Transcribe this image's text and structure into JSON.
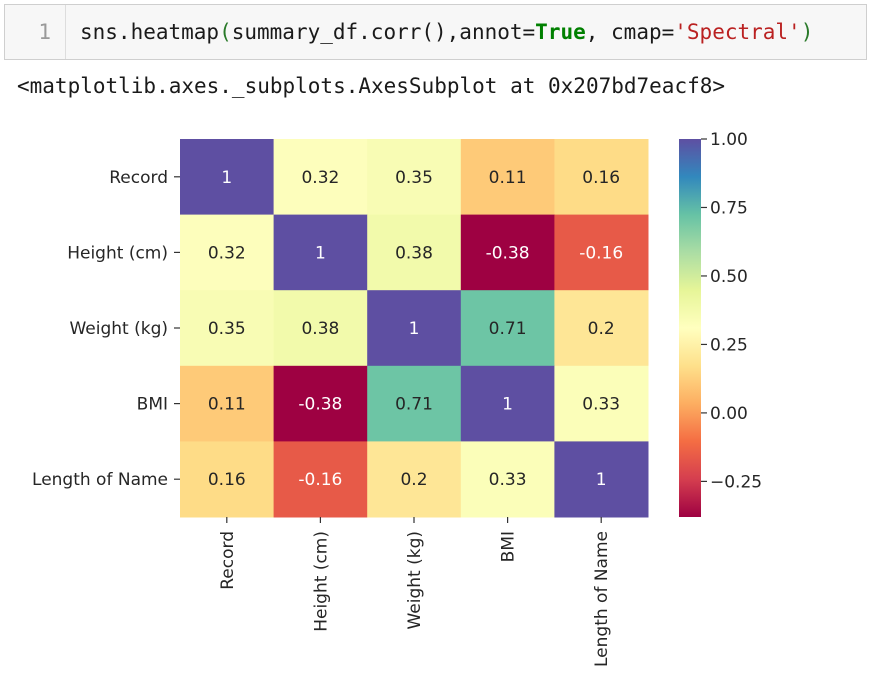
{
  "notebook": {
    "cell_input": {
      "line_number": "1",
      "tokens": [
        {
          "text": "sns.heatmap",
          "kind": "plain"
        },
        {
          "text": "(",
          "kind": "paren"
        },
        {
          "text": "summary_df.corr(),annot=",
          "kind": "plain"
        },
        {
          "text": "True",
          "kind": "kw"
        },
        {
          "text": ", cmap=",
          "kind": "plain"
        },
        {
          "text": "'Spectral'",
          "kind": "str"
        },
        {
          "text": ")",
          "kind": "paren"
        }
      ]
    },
    "cell_output": {
      "repr_text": "<matplotlib.axes._subplots.AxesSubplot at 0x207bd7eacf8>"
    }
  },
  "chart_data": {
    "type": "heatmap",
    "title": "",
    "xlabel": "",
    "ylabel": "",
    "cmap": "Spectral",
    "rows": [
      "Record",
      "Height (cm)",
      "Weight (kg)",
      "BMI",
      "Length of Name"
    ],
    "columns": [
      "Record",
      "Height (cm)",
      "Weight (kg)",
      "BMI",
      "Length of Name"
    ],
    "values": [
      [
        1,
        0.32,
        0.35,
        0.11,
        0.16
      ],
      [
        0.32,
        1,
        0.38,
        -0.38,
        -0.16
      ],
      [
        0.35,
        0.38,
        1,
        0.71,
        0.2
      ],
      [
        0.11,
        -0.38,
        0.71,
        1,
        0.33
      ],
      [
        0.16,
        -0.16,
        0.2,
        0.33,
        1
      ]
    ],
    "annotations": [
      [
        "1",
        "0.32",
        "0.35",
        "0.11",
        "0.16"
      ],
      [
        "0.32",
        "1",
        "0.38",
        "-0.38",
        "-0.16"
      ],
      [
        "0.35",
        "0.38",
        "1",
        "0.71",
        "0.2"
      ],
      [
        "0.11",
        "-0.38",
        "0.71",
        "1",
        "0.33"
      ],
      [
        "0.16",
        "-0.16",
        "0.2",
        "0.33",
        "1"
      ]
    ],
    "vmin": -0.38,
    "vmax": 1.0,
    "colorbar": {
      "ticks": [
        1.0,
        0.75,
        0.5,
        0.25,
        0.0,
        -0.25
      ],
      "tick_labels": [
        "1.00",
        "0.75",
        "0.50",
        "0.25",
        "0.00",
        "−0.25"
      ],
      "placement": "right"
    },
    "colors": {
      "stops": [
        "#9e0142",
        "#d53e4f",
        "#f46d43",
        "#fdae61",
        "#fee08b",
        "#ffffbf",
        "#e6f598",
        "#abdda4",
        "#66c2a5",
        "#3288bd",
        "#5e4fa2"
      ],
      "label_color": "#262626"
    }
  }
}
